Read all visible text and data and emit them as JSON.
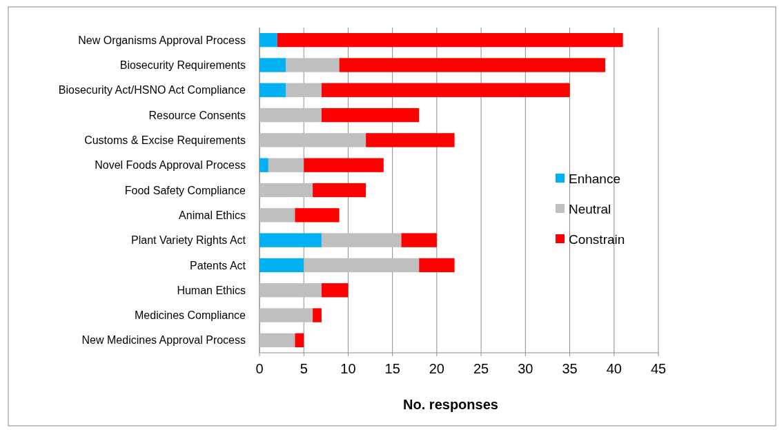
{
  "chart_data": {
    "type": "bar",
    "orientation": "horizontal",
    "stacked": true,
    "xlabel": "No. responses",
    "categories": [
      "New Organisms Approval Process",
      "Biosecurity Requirements",
      "Biosecurity Act/HSNO Act Compliance",
      "Resource Consents",
      "Customs & Excise Requirements",
      "Novel Foods Approval Process",
      "Food Safety Compliance",
      "Animal Ethics",
      "Plant Variety Rights Act",
      "Patents Act",
      "Human Ethics",
      "Medicines Compliance",
      "New Medicines Approval Process"
    ],
    "series": [
      {
        "name": "Enhance",
        "color": "#00b0f0",
        "values": [
          2,
          3,
          3,
          0,
          0,
          1,
          0,
          0,
          7,
          5,
          0,
          0,
          0
        ]
      },
      {
        "name": "Neutral",
        "color": "#bfbfbf",
        "values": [
          0,
          6,
          4,
          7,
          12,
          4,
          6,
          4,
          9,
          13,
          7,
          6,
          4
        ]
      },
      {
        "name": "Constrain",
        "color": "#ff0000",
        "values": [
          39,
          30,
          28,
          11,
          10,
          9,
          6,
          5,
          4,
          4,
          3,
          1,
          1
        ]
      }
    ],
    "xlim": [
      0,
      45
    ],
    "xticks": [
      0,
      5,
      10,
      15,
      20,
      25,
      30,
      35,
      40,
      45
    ],
    "grid": "x",
    "legend": "right"
  }
}
